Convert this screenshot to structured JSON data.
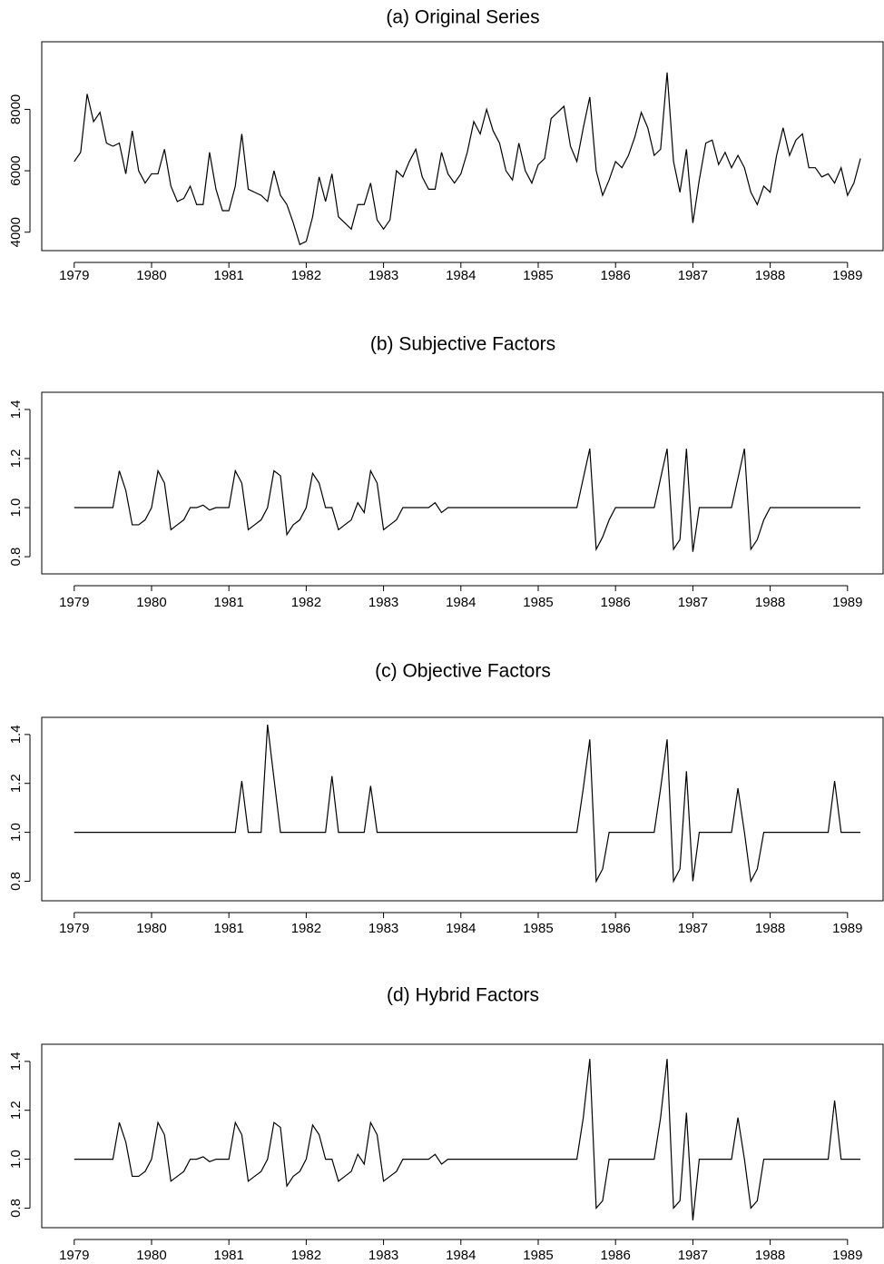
{
  "chart_data": [
    {
      "type": "line",
      "title": "(a)  Original Series",
      "x": [
        1979,
        1979.083,
        1979.167,
        1979.25,
        1979.333,
        1979.417,
        1979.5,
        1979.583,
        1979.667,
        1979.75,
        1979.833,
        1979.917,
        1980,
        1980.083,
        1980.167,
        1980.25,
        1980.333,
        1980.417,
        1980.5,
        1980.583,
        1980.667,
        1980.75,
        1980.833,
        1980.917,
        1981,
        1981.083,
        1981.167,
        1981.25,
        1981.333,
        1981.417,
        1981.5,
        1981.583,
        1981.667,
        1981.75,
        1981.833,
        1981.917,
        1982,
        1982.083,
        1982.167,
        1982.25,
        1982.333,
        1982.417,
        1982.5,
        1982.583,
        1982.667,
        1982.75,
        1982.833,
        1982.917,
        1983,
        1983.083,
        1983.167,
        1983.25,
        1983.333,
        1983.417,
        1983.5,
        1983.583,
        1983.667,
        1983.75,
        1983.833,
        1983.917,
        1984,
        1984.083,
        1984.167,
        1984.25,
        1984.333,
        1984.417,
        1984.5,
        1984.583,
        1984.667,
        1984.75,
        1984.833,
        1984.917,
        1985,
        1985.083,
        1985.167,
        1985.25,
        1985.333,
        1985.417,
        1985.5,
        1985.583,
        1985.667,
        1985.75,
        1985.833,
        1985.917,
        1986,
        1986.083,
        1986.167,
        1986.25,
        1986.333,
        1986.417,
        1986.5,
        1986.583,
        1986.667,
        1986.75,
        1986.833,
        1986.917,
        1987,
        1987.083,
        1987.167,
        1987.25,
        1987.333,
        1987.417,
        1987.5,
        1987.583,
        1987.667,
        1987.75,
        1987.833,
        1987.917,
        1988,
        1988.083,
        1988.167,
        1988.25,
        1988.333,
        1988.417,
        1988.5,
        1988.583,
        1988.667,
        1988.75,
        1988.833,
        1988.917,
        1989,
        1989.083,
        1989.167
      ],
      "values": [
        6300,
        6600,
        8500,
        7600,
        7900,
        6900,
        6800,
        6900,
        5900,
        7300,
        6000,
        5600,
        5900,
        5900,
        6700,
        5500,
        5000,
        5100,
        5500,
        4900,
        4900,
        6600,
        5400,
        4700,
        4700,
        5500,
        7200,
        5400,
        5300,
        5200,
        5000,
        6000,
        5200,
        4900,
        4300,
        3600,
        3700,
        4500,
        5800,
        5000,
        5900,
        4500,
        4300,
        4100,
        4900,
        4900,
        5600,
        4400,
        4100,
        4400,
        6000,
        5800,
        6300,
        6700,
        5800,
        5400,
        5400,
        6600,
        5900,
        5600,
        5900,
        6600,
        7600,
        7200,
        8000,
        7300,
        6900,
        6000,
        5700,
        6900,
        6000,
        5600,
        6200,
        6400,
        7700,
        7900,
        8100,
        6800,
        6300,
        7400,
        8400,
        6000,
        5200,
        5700,
        6300,
        6100,
        6500,
        7100,
        7900,
        7400,
        6500,
        6700,
        9200,
        6300,
        5300,
        6700,
        4300,
        5700,
        6900,
        7000,
        6200,
        6600,
        6100,
        6500,
        6100,
        5300,
        4900,
        5500,
        5300,
        6500,
        7400,
        6500,
        7000,
        7200,
        6100,
        6100,
        5800,
        5900,
        5600,
        6100,
        5200,
        5600,
        6400
      ],
      "color": "#000000",
      "xlim": [
        1978.58,
        1989.46
      ],
      "ylim": [
        3400,
        10200
      ],
      "xticks": [
        1979,
        1980,
        1981,
        1982,
        1983,
        1984,
        1985,
        1986,
        1987,
        1988,
        1989
      ],
      "yticks": [
        4000,
        6000,
        8000
      ]
    },
    {
      "type": "line",
      "title": "(b)  Subjective Factors",
      "x": [
        1979,
        1979.083,
        1979.167,
        1979.25,
        1979.333,
        1979.417,
        1979.5,
        1979.583,
        1979.667,
        1979.75,
        1979.833,
        1979.917,
        1980,
        1980.083,
        1980.167,
        1980.25,
        1980.333,
        1980.417,
        1980.5,
        1980.583,
        1980.667,
        1980.75,
        1980.833,
        1980.917,
        1981,
        1981.083,
        1981.167,
        1981.25,
        1981.333,
        1981.417,
        1981.5,
        1981.583,
        1981.667,
        1981.75,
        1981.833,
        1981.917,
        1982,
        1982.083,
        1982.167,
        1982.25,
        1982.333,
        1982.417,
        1982.5,
        1982.583,
        1982.667,
        1982.75,
        1982.833,
        1982.917,
        1983,
        1983.083,
        1983.167,
        1983.25,
        1983.333,
        1983.417,
        1983.5,
        1983.583,
        1983.667,
        1983.75,
        1983.833,
        1983.917,
        1984,
        1984.083,
        1984.167,
        1984.25,
        1984.333,
        1984.417,
        1984.5,
        1984.583,
        1984.667,
        1984.75,
        1984.833,
        1984.917,
        1985,
        1985.083,
        1985.167,
        1985.25,
        1985.333,
        1985.417,
        1985.5,
        1985.583,
        1985.667,
        1985.75,
        1985.833,
        1985.917,
        1986,
        1986.083,
        1986.167,
        1986.25,
        1986.333,
        1986.417,
        1986.5,
        1986.583,
        1986.667,
        1986.75,
        1986.833,
        1986.917,
        1987,
        1987.083,
        1987.167,
        1987.25,
        1987.333,
        1987.417,
        1987.5,
        1987.583,
        1987.667,
        1987.75,
        1987.833,
        1987.917,
        1988,
        1988.083,
        1988.167,
        1988.25,
        1988.333,
        1988.417,
        1988.5,
        1988.583,
        1988.667,
        1988.75,
        1988.833,
        1988.917,
        1989,
        1989.083,
        1989.167
      ],
      "values": [
        1,
        1,
        1,
        1,
        1,
        1,
        1,
        1.15,
        1.07,
        0.93,
        0.93,
        0.95,
        1.0,
        1.15,
        1.1,
        0.91,
        0.93,
        0.95,
        1.0,
        1.0,
        1.01,
        0.99,
        1.0,
        1.0,
        1.0,
        1.15,
        1.1,
        0.91,
        0.93,
        0.95,
        1.0,
        1.15,
        1.13,
        0.89,
        0.93,
        0.95,
        1.0,
        1.14,
        1.1,
        1.0,
        1.0,
        0.91,
        0.93,
        0.95,
        1.02,
        0.98,
        1.15,
        1.1,
        0.91,
        0.93,
        0.95,
        1.0,
        1.0,
        1.0,
        1.0,
        1.0,
        1.02,
        0.98,
        1.0,
        1.0,
        1,
        1,
        1,
        1,
        1,
        1,
        1,
        1,
        1,
        1,
        1,
        1,
        1,
        1,
        1,
        1,
        1,
        1,
        1,
        1.12,
        1.24,
        0.83,
        0.88,
        0.95,
        1,
        1,
        1,
        1,
        1,
        1,
        1,
        1.12,
        1.24,
        0.83,
        0.87,
        1.24,
        0.82,
        1,
        1,
        1,
        1,
        1,
        1,
        1.12,
        1.24,
        0.83,
        0.87,
        0.95,
        1,
        1,
        1,
        1,
        1,
        1,
        1,
        1,
        1,
        1,
        1,
        1,
        1,
        1,
        1
      ],
      "color": "#000000",
      "xlim": [
        1978.58,
        1989.46
      ],
      "ylim": [
        0.73,
        1.47
      ],
      "xticks": [
        1979,
        1980,
        1981,
        1982,
        1983,
        1984,
        1985,
        1986,
        1987,
        1988,
        1989
      ],
      "yticks": [
        {
          "value": 0.8,
          "label": "0.8"
        },
        {
          "value": 1,
          "label": "1.0"
        },
        {
          "value": 1.2,
          "label": "1.2"
        },
        {
          "value": 1.4,
          "label": "1.4"
        }
      ]
    },
    {
      "type": "line",
      "title": "(c)  Objective Factors",
      "x": [
        1979,
        1979.083,
        1979.167,
        1979.25,
        1979.333,
        1979.417,
        1979.5,
        1979.583,
        1979.667,
        1979.75,
        1979.833,
        1979.917,
        1980,
        1980.083,
        1980.167,
        1980.25,
        1980.333,
        1980.417,
        1980.5,
        1980.583,
        1980.667,
        1980.75,
        1980.833,
        1980.917,
        1981,
        1981.083,
        1981.167,
        1981.25,
        1981.333,
        1981.417,
        1981.5,
        1981.583,
        1981.667,
        1981.75,
        1981.833,
        1981.917,
        1982,
        1982.083,
        1982.167,
        1982.25,
        1982.333,
        1982.417,
        1982.5,
        1982.583,
        1982.667,
        1982.75,
        1982.833,
        1982.917,
        1983,
        1983.083,
        1983.167,
        1983.25,
        1983.333,
        1983.417,
        1983.5,
        1983.583,
        1983.667,
        1983.75,
        1983.833,
        1983.917,
        1984,
        1984.083,
        1984.167,
        1984.25,
        1984.333,
        1984.417,
        1984.5,
        1984.583,
        1984.667,
        1984.75,
        1984.833,
        1984.917,
        1985,
        1985.083,
        1985.167,
        1985.25,
        1985.333,
        1985.417,
        1985.5,
        1985.583,
        1985.667,
        1985.75,
        1985.833,
        1985.917,
        1986,
        1986.083,
        1986.167,
        1986.25,
        1986.333,
        1986.417,
        1986.5,
        1986.583,
        1986.667,
        1986.75,
        1986.833,
        1986.917,
        1987,
        1987.083,
        1987.167,
        1987.25,
        1987.333,
        1987.417,
        1987.5,
        1987.583,
        1987.667,
        1987.75,
        1987.833,
        1987.917,
        1988,
        1988.083,
        1988.167,
        1988.25,
        1988.333,
        1988.417,
        1988.5,
        1988.583,
        1988.667,
        1988.75,
        1988.833,
        1988.917,
        1989,
        1989.083,
        1989.167
      ],
      "values": [
        1,
        1,
        1,
        1,
        1,
        1,
        1,
        1,
        1,
        1,
        1,
        1,
        1,
        1,
        1,
        1,
        1,
        1,
        1,
        1,
        1,
        1,
        1,
        1,
        1,
        1,
        1.21,
        1,
        1,
        1,
        1.44,
        1.22,
        1,
        1,
        1,
        1,
        1,
        1,
        1,
        1,
        1.23,
        1,
        1,
        1,
        1,
        1,
        1.19,
        1,
        1,
        1,
        1,
        1,
        1,
        1,
        1,
        1,
        1,
        1,
        1,
        1,
        1,
        1,
        1,
        1,
        1,
        1,
        1,
        1,
        1,
        1,
        1,
        1,
        1,
        1,
        1,
        1,
        1,
        1,
        1,
        1.18,
        1.38,
        0.8,
        0.85,
        1.0,
        1,
        1,
        1,
        1,
        1,
        1,
        1,
        1.18,
        1.38,
        0.8,
        0.85,
        1.25,
        0.8,
        1,
        1,
        1,
        1,
        1,
        1,
        1.18,
        1.0,
        0.8,
        0.85,
        1.0,
        1,
        1,
        1,
        1,
        1,
        1,
        1,
        1,
        1,
        1,
        1.21,
        1,
        1,
        1,
        1
      ],
      "color": "#000000",
      "xlim": [
        1978.58,
        1989.46
      ],
      "ylim": [
        0.72,
        1.47
      ],
      "xticks": [
        1979,
        1980,
        1981,
        1982,
        1983,
        1984,
        1985,
        1986,
        1987,
        1988,
        1989
      ],
      "yticks": [
        {
          "value": 0.8,
          "label": "0.8"
        },
        {
          "value": 1,
          "label": "1.0"
        },
        {
          "value": 1.2,
          "label": "1.2"
        },
        {
          "value": 1.4,
          "label": "1.4"
        }
      ]
    },
    {
      "type": "line",
      "title": "(d)  Hybrid Factors",
      "x": [
        1979,
        1979.083,
        1979.167,
        1979.25,
        1979.333,
        1979.417,
        1979.5,
        1979.583,
        1979.667,
        1979.75,
        1979.833,
        1979.917,
        1980,
        1980.083,
        1980.167,
        1980.25,
        1980.333,
        1980.417,
        1980.5,
        1980.583,
        1980.667,
        1980.75,
        1980.833,
        1980.917,
        1981,
        1981.083,
        1981.167,
        1981.25,
        1981.333,
        1981.417,
        1981.5,
        1981.583,
        1981.667,
        1981.75,
        1981.833,
        1981.917,
        1982,
        1982.083,
        1982.167,
        1982.25,
        1982.333,
        1982.417,
        1982.5,
        1982.583,
        1982.667,
        1982.75,
        1982.833,
        1982.917,
        1983,
        1983.083,
        1983.167,
        1983.25,
        1983.333,
        1983.417,
        1983.5,
        1983.583,
        1983.667,
        1983.75,
        1983.833,
        1983.917,
        1984,
        1984.083,
        1984.167,
        1984.25,
        1984.333,
        1984.417,
        1984.5,
        1984.583,
        1984.667,
        1984.75,
        1984.833,
        1984.917,
        1985,
        1985.083,
        1985.167,
        1985.25,
        1985.333,
        1985.417,
        1985.5,
        1985.583,
        1985.667,
        1985.75,
        1985.833,
        1985.917,
        1986,
        1986.083,
        1986.167,
        1986.25,
        1986.333,
        1986.417,
        1986.5,
        1986.583,
        1986.667,
        1986.75,
        1986.833,
        1986.917,
        1987,
        1987.083,
        1987.167,
        1987.25,
        1987.333,
        1987.417,
        1987.5,
        1987.583,
        1987.667,
        1987.75,
        1987.833,
        1987.917,
        1988,
        1988.083,
        1988.167,
        1988.25,
        1988.333,
        1988.417,
        1988.5,
        1988.583,
        1988.667,
        1988.75,
        1988.833,
        1988.917,
        1989,
        1989.083,
        1989.167
      ],
      "values": [
        1,
        1,
        1,
        1,
        1,
        1,
        1,
        1.15,
        1.07,
        0.93,
        0.93,
        0.95,
        1.0,
        1.15,
        1.1,
        0.91,
        0.93,
        0.95,
        1.0,
        1.0,
        1.01,
        0.99,
        1.0,
        1.0,
        1.0,
        1.15,
        1.1,
        0.91,
        0.93,
        0.95,
        1.0,
        1.15,
        1.13,
        0.89,
        0.93,
        0.95,
        1.0,
        1.14,
        1.1,
        1.0,
        1.0,
        0.91,
        0.93,
        0.95,
        1.02,
        0.98,
        1.15,
        1.1,
        0.91,
        0.93,
        0.95,
        1.0,
        1.0,
        1.0,
        1.0,
        1.0,
        1.02,
        0.98,
        1.0,
        1.0,
        1,
        1,
        1,
        1,
        1,
        1,
        1,
        1,
        1,
        1,
        1,
        1,
        1,
        1,
        1,
        1,
        1,
        1,
        1,
        1.17,
        1.41,
        0.8,
        0.83,
        1.0,
        1,
        1,
        1,
        1,
        1,
        1,
        1,
        1.17,
        1.41,
        0.8,
        0.83,
        1.19,
        0.75,
        1,
        1,
        1,
        1,
        1,
        1,
        1.17,
        1.0,
        0.8,
        0.83,
        1.0,
        1,
        1,
        1,
        1,
        1,
        1,
        1,
        1,
        1,
        1,
        1.24,
        1,
        1,
        1,
        1
      ],
      "color": "#000000",
      "xlim": [
        1978.58,
        1989.46
      ],
      "ylim": [
        0.72,
        1.47
      ],
      "xticks": [
        1979,
        1980,
        1981,
        1982,
        1983,
        1984,
        1985,
        1986,
        1987,
        1988,
        1989
      ],
      "yticks": [
        {
          "value": 0.8,
          "label": "0.8"
        },
        {
          "value": 1,
          "label": "1.0"
        },
        {
          "value": 1.2,
          "label": "1.2"
        },
        {
          "value": 1.4,
          "label": "1.4"
        }
      ]
    }
  ]
}
